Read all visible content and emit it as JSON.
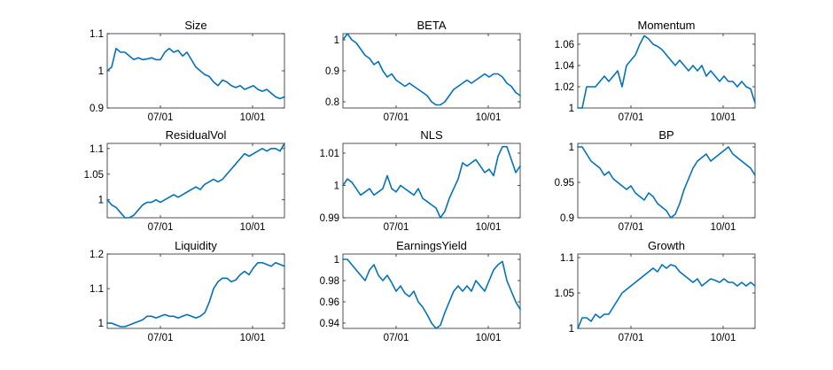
{
  "line_color": "#0072BD",
  "chart_data": [
    {
      "type": "line",
      "title": "Size",
      "ylim": [
        0.9,
        1.1
      ],
      "yticks": [
        0.9,
        1,
        1.1
      ],
      "ytick_labels": [
        "0.9",
        "1",
        "1.1"
      ],
      "xticks": [
        0.3,
        0.82
      ],
      "xtick_labels": [
        "07/01",
        "10/01"
      ],
      "values": [
        1.0,
        1.01,
        1.06,
        1.05,
        1.05,
        1.04,
        1.03,
        1.035,
        1.03,
        1.032,
        1.035,
        1.03,
        1.03,
        1.05,
        1.06,
        1.05,
        1.055,
        1.04,
        1.05,
        1.03,
        1.01,
        1.0,
        0.99,
        0.985,
        0.97,
        0.96,
        0.975,
        0.97,
        0.96,
        0.955,
        0.96,
        0.95,
        0.955,
        0.96,
        0.95,
        0.945,
        0.95,
        0.94,
        0.93,
        0.925,
        0.93
      ]
    },
    {
      "type": "line",
      "title": "BETA",
      "ylim": [
        0.78,
        1.02
      ],
      "yticks": [
        0.8,
        0.9,
        1
      ],
      "ytick_labels": [
        "0.8",
        "0.9",
        "1"
      ],
      "xticks": [
        0.3,
        0.82
      ],
      "xtick_labels": [
        "07/01",
        "10/01"
      ],
      "values": [
        1.0,
        1.02,
        1.0,
        0.99,
        0.97,
        0.95,
        0.94,
        0.92,
        0.93,
        0.9,
        0.88,
        0.89,
        0.87,
        0.86,
        0.85,
        0.86,
        0.85,
        0.84,
        0.83,
        0.82,
        0.8,
        0.79,
        0.79,
        0.8,
        0.82,
        0.84,
        0.85,
        0.86,
        0.87,
        0.86,
        0.87,
        0.88,
        0.89,
        0.88,
        0.89,
        0.89,
        0.88,
        0.86,
        0.85,
        0.83,
        0.82
      ]
    },
    {
      "type": "line",
      "title": "Momentum",
      "ylim": [
        1.0,
        1.07
      ],
      "yticks": [
        1,
        1.02,
        1.04,
        1.06
      ],
      "ytick_labels": [
        "1",
        "1.02",
        "1.04",
        "1.06"
      ],
      "xticks": [
        0.3,
        0.82
      ],
      "xtick_labels": [
        "07/01",
        "10/01"
      ],
      "values": [
        1.0,
        1.0,
        1.02,
        1.02,
        1.02,
        1.025,
        1.03,
        1.025,
        1.03,
        1.035,
        1.02,
        1.04,
        1.045,
        1.05,
        1.06,
        1.068,
        1.065,
        1.06,
        1.058,
        1.055,
        1.05,
        1.045,
        1.04,
        1.045,
        1.04,
        1.035,
        1.04,
        1.035,
        1.04,
        1.03,
        1.035,
        1.03,
        1.025,
        1.03,
        1.025,
        1.025,
        1.02,
        1.025,
        1.02,
        1.018,
        1.005
      ]
    },
    {
      "type": "line",
      "title": "ResidualVol",
      "ylim": [
        0.965,
        1.11
      ],
      "yticks": [
        1,
        1.05,
        1.1
      ],
      "ytick_labels": [
        "1",
        "1.05",
        "1.1"
      ],
      "xticks": [
        0.3,
        0.82
      ],
      "xtick_labels": [
        "07/01",
        "10/01"
      ],
      "values": [
        1.0,
        0.99,
        0.985,
        0.975,
        0.965,
        0.965,
        0.97,
        0.98,
        0.99,
        0.995,
        0.995,
        1.0,
        0.995,
        1.0,
        1.005,
        1.01,
        1.005,
        1.01,
        1.015,
        1.02,
        1.025,
        1.02,
        1.03,
        1.035,
        1.04,
        1.035,
        1.04,
        1.05,
        1.06,
        1.07,
        1.08,
        1.09,
        1.085,
        1.09,
        1.095,
        1.1,
        1.095,
        1.1,
        1.1,
        1.095,
        1.11
      ]
    },
    {
      "type": "line",
      "title": "NLS",
      "ylim": [
        0.99,
        1.013
      ],
      "yticks": [
        0.99,
        1,
        1.01
      ],
      "ytick_labels": [
        "0.99",
        "1",
        "1.01"
      ],
      "xticks": [
        0.3,
        0.82
      ],
      "xtick_labels": [
        "07/01",
        "10/01"
      ],
      "values": [
        1.0,
        1.002,
        1.001,
        0.999,
        0.997,
        0.998,
        0.999,
        0.997,
        0.998,
        0.999,
        1.003,
        0.999,
        0.998,
        1.0,
        0.999,
        0.998,
        0.997,
        0.999,
        0.996,
        0.995,
        0.994,
        0.993,
        0.99,
        0.992,
        0.996,
        0.999,
        1.002,
        1.007,
        1.006,
        1.007,
        1.008,
        1.006,
        1.004,
        1.005,
        1.003,
        1.009,
        1.012,
        1.012,
        1.008,
        1.004,
        1.006
      ]
    },
    {
      "type": "line",
      "title": "BP",
      "ylim": [
        0.9,
        1.005
      ],
      "yticks": [
        0.9,
        0.95,
        1
      ],
      "ytick_labels": [
        "0.9",
        "0.95",
        "1"
      ],
      "xticks": [
        0.3,
        0.82
      ],
      "xtick_labels": [
        "07/01",
        "10/01"
      ],
      "values": [
        1.0,
        1.0,
        0.99,
        0.98,
        0.975,
        0.97,
        0.96,
        0.965,
        0.955,
        0.95,
        0.945,
        0.94,
        0.945,
        0.935,
        0.93,
        0.925,
        0.935,
        0.93,
        0.92,
        0.915,
        0.91,
        0.9,
        0.905,
        0.92,
        0.94,
        0.955,
        0.97,
        0.98,
        0.985,
        0.99,
        0.98,
        0.985,
        0.99,
        0.995,
        1.0,
        0.99,
        0.985,
        0.98,
        0.975,
        0.97,
        0.96
      ]
    },
    {
      "type": "line",
      "title": "Liquidity",
      "ylim": [
        0.985,
        1.2
      ],
      "yticks": [
        1,
        1.1,
        1.2
      ],
      "ytick_labels": [
        "1",
        "1.1",
        "1.2"
      ],
      "xticks": [
        0.3,
        0.82
      ],
      "xtick_labels": [
        "07/01",
        "10/01"
      ],
      "values": [
        1.0,
        1.0,
        0.995,
        0.99,
        0.99,
        0.995,
        1.0,
        1.005,
        1.01,
        1.02,
        1.02,
        1.015,
        1.02,
        1.025,
        1.02,
        1.02,
        1.015,
        1.02,
        1.025,
        1.02,
        1.015,
        1.02,
        1.03,
        1.06,
        1.1,
        1.12,
        1.13,
        1.13,
        1.12,
        1.125,
        1.14,
        1.15,
        1.14,
        1.16,
        1.175,
        1.175,
        1.17,
        1.165,
        1.175,
        1.17,
        1.165
      ]
    },
    {
      "type": "line",
      "title": "EarningsYield",
      "ylim": [
        0.935,
        1.005
      ],
      "yticks": [
        0.94,
        0.96,
        0.98,
        1
      ],
      "ytick_labels": [
        "0.94",
        "0.96",
        "0.98",
        "1"
      ],
      "xticks": [
        0.3,
        0.82
      ],
      "xtick_labels": [
        "07/01",
        "10/01"
      ],
      "values": [
        1.0,
        1.0,
        0.995,
        0.99,
        0.985,
        0.98,
        0.99,
        0.995,
        0.985,
        0.98,
        0.985,
        0.978,
        0.97,
        0.975,
        0.968,
        0.965,
        0.97,
        0.96,
        0.955,
        0.948,
        0.94,
        0.935,
        0.938,
        0.95,
        0.96,
        0.97,
        0.975,
        0.97,
        0.975,
        0.97,
        0.98,
        0.975,
        0.97,
        0.98,
        0.99,
        0.995,
        0.998,
        0.98,
        0.97,
        0.96,
        0.953
      ]
    },
    {
      "type": "line",
      "title": "Growth",
      "ylim": [
        1.0,
        1.105
      ],
      "yticks": [
        1,
        1.05,
        1.1
      ],
      "ytick_labels": [
        "1",
        "1.05",
        "1.1"
      ],
      "xticks": [
        0.3,
        0.82
      ],
      "xtick_labels": [
        "07/01",
        "10/01"
      ],
      "values": [
        1.0,
        1.015,
        1.015,
        1.01,
        1.02,
        1.015,
        1.02,
        1.02,
        1.03,
        1.04,
        1.05,
        1.055,
        1.06,
        1.065,
        1.07,
        1.075,
        1.08,
        1.085,
        1.08,
        1.09,
        1.085,
        1.09,
        1.088,
        1.08,
        1.075,
        1.07,
        1.065,
        1.07,
        1.06,
        1.065,
        1.07,
        1.068,
        1.065,
        1.07,
        1.065,
        1.065,
        1.06,
        1.065,
        1.06,
        1.065,
        1.06
      ]
    }
  ]
}
